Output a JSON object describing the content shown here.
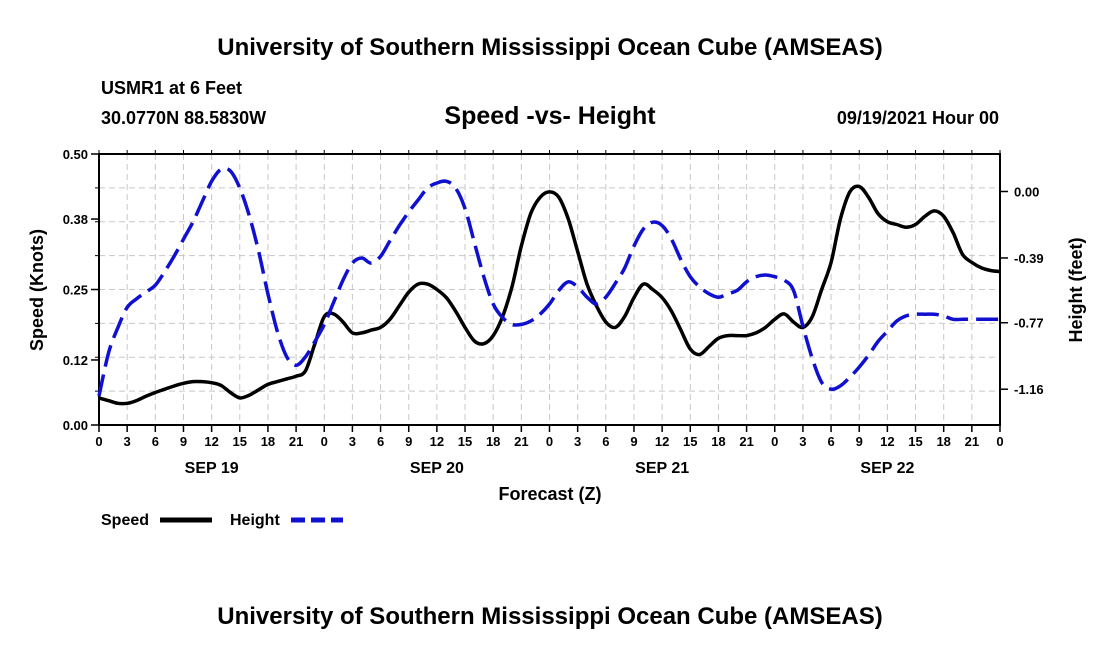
{
  "header": {
    "title": "University of Southern Mississippi Ocean Cube (AMSEAS)",
    "station": "USMR1 at 6 Feet",
    "coords": "30.0770N  88.5830W",
    "chart_title": "Speed -vs- Height",
    "run_time": "09/19/2021 Hour 00",
    "footer": "University of Southern Mississippi Ocean Cube (AMSEAS)"
  },
  "legend": {
    "speed_label": "Speed",
    "height_label": "Height"
  },
  "colors": {
    "speed": "#000000",
    "height": "#1010d0",
    "grid": "#c8c8c8"
  },
  "chart_data": {
    "type": "line",
    "title": "Speed -vs- Height",
    "xlabel": "Forecast (Z)",
    "ylabel_left": "Speed (Knots)",
    "ylabel_right": "Height (feet)",
    "x_hours_range": [
      0,
      96
    ],
    "hour_tick_labels": [
      "0",
      "3",
      "6",
      "9",
      "12",
      "15",
      "18",
      "21",
      "0",
      "3",
      "6",
      "9",
      "12",
      "15",
      "18",
      "21",
      "0",
      "3",
      "6",
      "9",
      "12",
      "15",
      "18",
      "21",
      "0",
      "3",
      "6",
      "9",
      "12",
      "15",
      "18",
      "21",
      "0"
    ],
    "date_labels": [
      {
        "label": "SEP 19",
        "hour": 12
      },
      {
        "label": "SEP 20",
        "hour": 36
      },
      {
        "label": "SEP 21",
        "hour": 60
      },
      {
        "label": "SEP 22",
        "hour": 84
      }
    ],
    "ylim_left": [
      0,
      0.5
    ],
    "yticks_left": [
      "0.00",
      "0.12",
      "0.25",
      "0.38",
      "0.50"
    ],
    "ylim_right": [
      -1.37,
      0.22
    ],
    "yticks_right": [
      "0.00",
      "-0.39",
      "-0.77",
      "-1.16"
    ],
    "yticks_right_values": [
      0.0,
      -0.39,
      -0.77,
      -1.16
    ],
    "series": [
      {
        "name": "Speed",
        "axis": "left",
        "hours": [
          0,
          1,
          2,
          3,
          4,
          5,
          6,
          7,
          8,
          9,
          10,
          11,
          12,
          13,
          14,
          15,
          16,
          17,
          18,
          19,
          20,
          21,
          22,
          23,
          24,
          25,
          26,
          27,
          28,
          29,
          30,
          31,
          32,
          33,
          34,
          35,
          36,
          37,
          38,
          39,
          40,
          41,
          42,
          43,
          44,
          45,
          46,
          47,
          48,
          49,
          50,
          51,
          52,
          53,
          54,
          55,
          56,
          57,
          58,
          59,
          60,
          61,
          62,
          63,
          64,
          65,
          66,
          67,
          68,
          69,
          70,
          71,
          72,
          73,
          74,
          75,
          76,
          77,
          78,
          79,
          80,
          81,
          82,
          83,
          84,
          85,
          86,
          87,
          88,
          89,
          90,
          91,
          92,
          93,
          94,
          95,
          96
        ],
        "values": [
          0.05,
          0.045,
          0.04,
          0.04,
          0.045,
          0.053,
          0.06,
          0.066,
          0.072,
          0.077,
          0.08,
          0.08,
          0.078,
          0.073,
          0.06,
          0.05,
          0.055,
          0.065,
          0.075,
          0.08,
          0.085,
          0.09,
          0.1,
          0.15,
          0.2,
          0.205,
          0.19,
          0.17,
          0.17,
          0.175,
          0.18,
          0.195,
          0.22,
          0.245,
          0.26,
          0.26,
          0.25,
          0.235,
          0.21,
          0.18,
          0.155,
          0.15,
          0.165,
          0.2,
          0.255,
          0.33,
          0.39,
          0.42,
          0.43,
          0.42,
          0.38,
          0.32,
          0.26,
          0.22,
          0.19,
          0.18,
          0.2,
          0.235,
          0.26,
          0.25,
          0.235,
          0.21,
          0.175,
          0.14,
          0.13,
          0.145,
          0.16,
          0.165,
          0.165,
          0.165,
          0.17,
          0.18,
          0.195,
          0.205,
          0.19,
          0.18,
          0.2,
          0.25,
          0.3,
          0.38,
          0.43,
          0.44,
          0.42,
          0.39,
          0.375,
          0.37,
          0.365,
          0.37,
          0.385,
          0.395,
          0.385,
          0.355,
          0.315,
          0.3,
          0.29,
          0.285,
          0.283
        ]
      },
      {
        "name": "Height",
        "axis": "right",
        "hours": [
          0,
          1,
          2,
          3,
          4,
          5,
          6,
          7,
          8,
          9,
          10,
          11,
          12,
          13,
          14,
          15,
          16,
          17,
          18,
          19,
          20,
          21,
          22,
          23,
          24,
          25,
          26,
          27,
          28,
          29,
          30,
          31,
          32,
          33,
          34,
          35,
          36,
          37,
          38,
          39,
          40,
          41,
          42,
          43,
          44,
          45,
          46,
          47,
          48,
          49,
          50,
          51,
          52,
          53,
          54,
          55,
          56,
          57,
          58,
          59,
          60,
          61,
          62,
          63,
          64,
          65,
          66,
          67,
          68,
          69,
          70,
          71,
          72,
          73,
          74,
          75,
          76,
          77,
          78,
          79,
          80,
          81,
          82,
          83,
          84,
          85,
          86,
          87,
          88,
          89,
          90,
          91,
          92,
          93,
          94,
          95,
          96
        ],
        "values": [
          -1.2,
          -0.95,
          -0.8,
          -0.68,
          -0.63,
          -0.59,
          -0.55,
          -0.47,
          -0.38,
          -0.28,
          -0.18,
          -0.06,
          0.06,
          0.13,
          0.12,
          0.02,
          -0.14,
          -0.35,
          -0.6,
          -0.82,
          -0.97,
          -1.02,
          -0.97,
          -0.88,
          -0.78,
          -0.65,
          -0.52,
          -0.42,
          -0.39,
          -0.42,
          -0.38,
          -0.29,
          -0.2,
          -0.12,
          -0.05,
          0.02,
          0.05,
          0.06,
          0.02,
          -0.1,
          -0.3,
          -0.5,
          -0.66,
          -0.74,
          -0.78,
          -0.78,
          -0.76,
          -0.72,
          -0.66,
          -0.58,
          -0.53,
          -0.56,
          -0.62,
          -0.66,
          -0.62,
          -0.54,
          -0.45,
          -0.32,
          -0.22,
          -0.18,
          -0.2,
          -0.28,
          -0.4,
          -0.5,
          -0.56,
          -0.6,
          -0.62,
          -0.6,
          -0.58,
          -0.53,
          -0.5,
          -0.49,
          -0.5,
          -0.52,
          -0.58,
          -0.79,
          -0.98,
          -1.12,
          -1.16,
          -1.14,
          -1.09,
          -1.03,
          -0.96,
          -0.88,
          -0.82,
          -0.76,
          -0.73,
          -0.72,
          -0.72,
          -0.72,
          -0.73,
          -0.75,
          -0.75,
          -0.75,
          -0.75,
          -0.75,
          -0.75
        ]
      }
    ]
  }
}
